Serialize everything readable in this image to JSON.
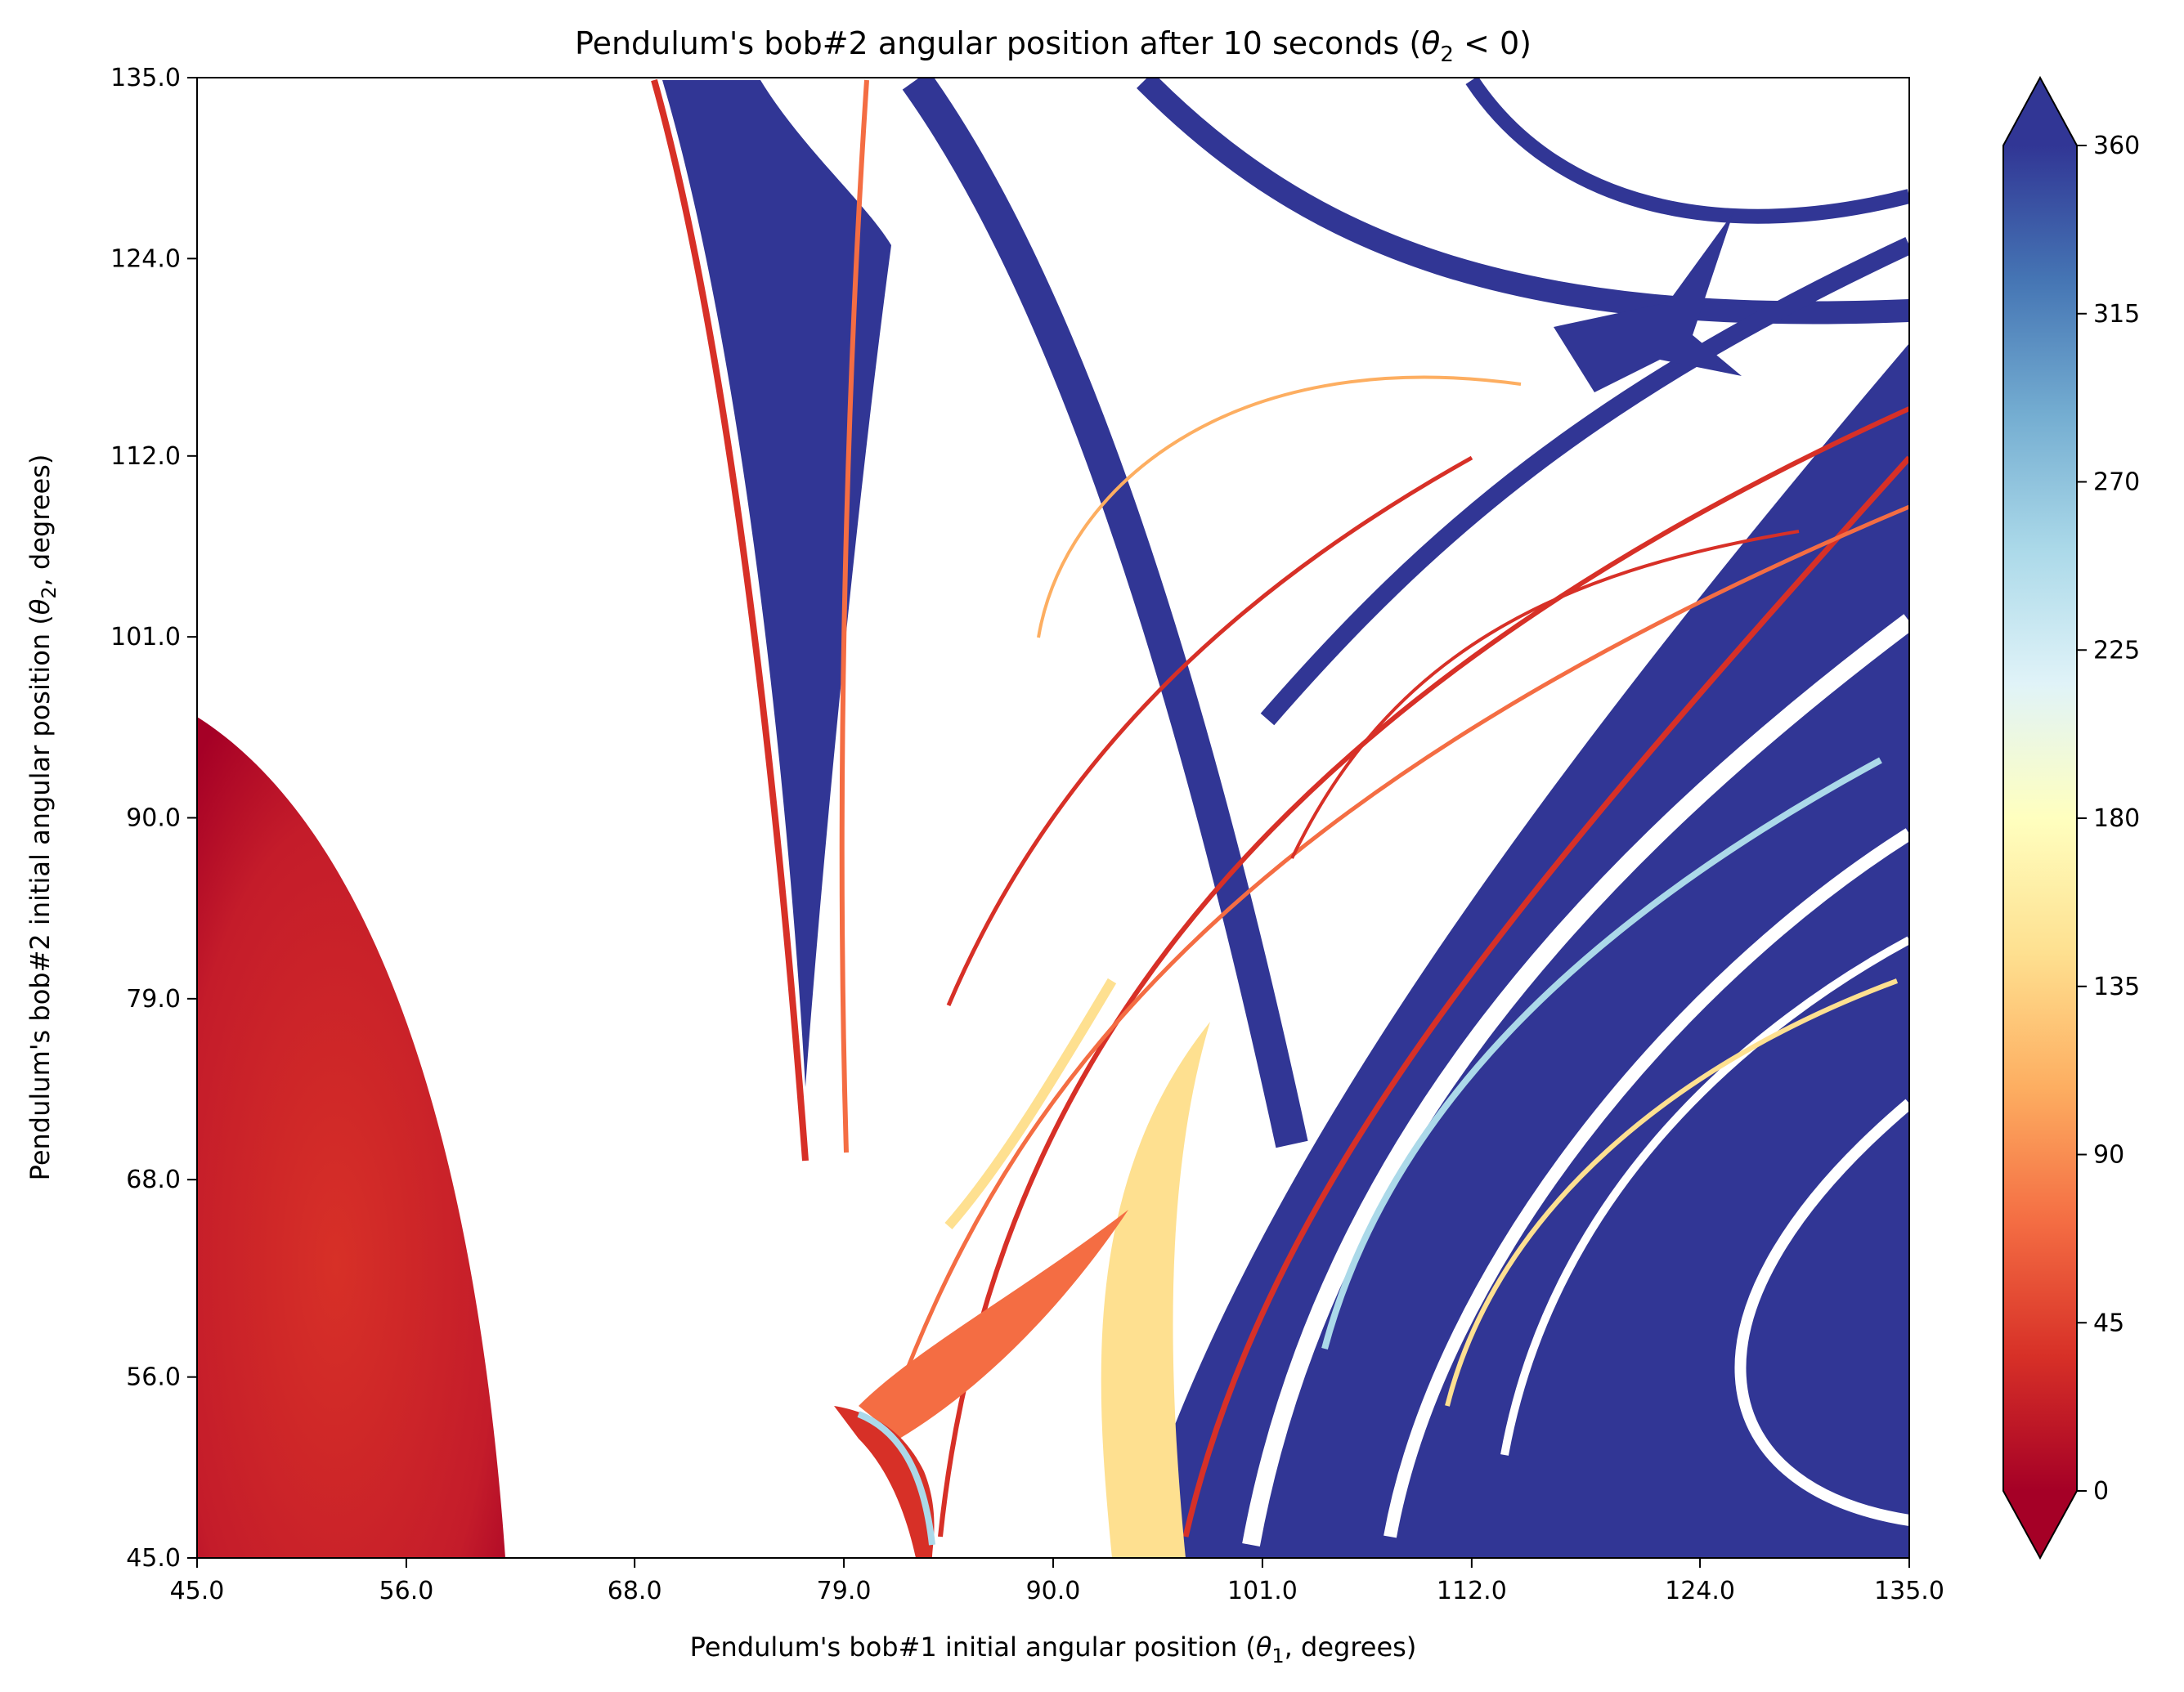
{
  "chart_data": {
    "type": "heatmap",
    "title": {
      "prefix": "Pendulum's bob#2 angular position after 10 seconds (",
      "symbol": "θ",
      "subscript": "2",
      "suffix": " < 0)"
    },
    "xlabel": {
      "prefix": "Pendulum's bob#1 initial angular position (",
      "symbol": "θ",
      "subscript": "1",
      "suffix": ", degrees)"
    },
    "ylabel": {
      "prefix": "Pendulum's bob#2 initial angular position (",
      "symbol": "θ",
      "subscript": "2",
      "suffix": ", degrees)"
    },
    "x_range": [
      45.0,
      135.0
    ],
    "y_range": [
      45.0,
      135.0
    ],
    "x_ticks": [
      "45.0",
      "56.0",
      "68.0",
      "79.0",
      "90.0",
      "101.0",
      "112.0",
      "124.0",
      "135.0"
    ],
    "y_ticks": [
      "45.0",
      "56.0",
      "68.0",
      "79.0",
      "90.0",
      "101.0",
      "112.0",
      "124.0",
      "135.0"
    ],
    "colorbar": {
      "range": [
        0,
        360
      ],
      "ticks": [
        "0",
        "45",
        "90",
        "135",
        "180",
        "225",
        "270",
        "315",
        "360"
      ],
      "extend": "both",
      "colormap": [
        "#a50026",
        "#d73027",
        "#f46d43",
        "#fdae61",
        "#fee090",
        "#ffffbf",
        "#e0f3f8",
        "#abd9e9",
        "#74add1",
        "#4575b4",
        "#313695"
      ]
    },
    "colors": {
      "low": "#b5102a",
      "mid_low": "#d73027",
      "orange": "#f46d43",
      "yellow": "#fee090",
      "light_blue": "#abd9e9",
      "high": "#313695",
      "empty": "#ffffff"
    },
    "grid": false
  }
}
